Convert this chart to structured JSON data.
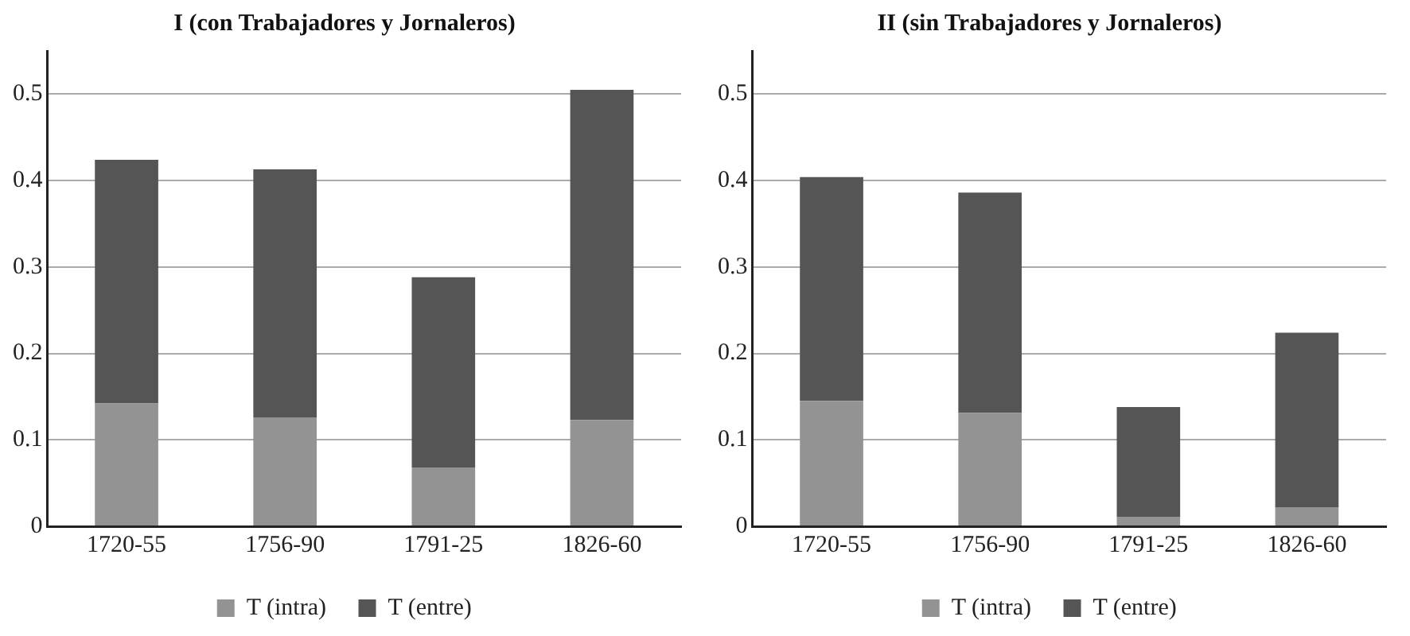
{
  "chart_data": [
    {
      "type": "bar",
      "title": "I (con Trabajadores y Jornaleros)",
      "categories": [
        "1720-55",
        "1756-90",
        "1791-25",
        "1826-60"
      ],
      "stacked": true,
      "series": [
        {
          "name": "T (intra)",
          "color": "#939393",
          "values": [
            0.142,
            0.126,
            0.068,
            0.123
          ]
        },
        {
          "name": "T (entre)",
          "color": "#555555",
          "values": [
            0.282,
            0.287,
            0.22,
            0.382
          ]
        }
      ],
      "ylim": [
        0,
        0.55
      ],
      "yticks": [
        0,
        0.1,
        0.2,
        0.3,
        0.4,
        0.5
      ],
      "grid": "y",
      "legend": "bottom"
    },
    {
      "type": "bar",
      "title": "II (sin Trabajadores y Jornaleros)",
      "categories": [
        "1720-55",
        "1756-90",
        "1791-25",
        "1826-60"
      ],
      "stacked": true,
      "series": [
        {
          "name": "T (intra)",
          "color": "#939393",
          "values": [
            0.145,
            0.131,
            0.011,
            0.022
          ]
        },
        {
          "name": "T (entre)",
          "color": "#555555",
          "values": [
            0.259,
            0.255,
            0.127,
            0.202
          ]
        }
      ],
      "ylim": [
        0,
        0.55
      ],
      "yticks": [
        0,
        0.1,
        0.2,
        0.3,
        0.4,
        0.5
      ],
      "grid": "y",
      "legend": "bottom"
    }
  ]
}
